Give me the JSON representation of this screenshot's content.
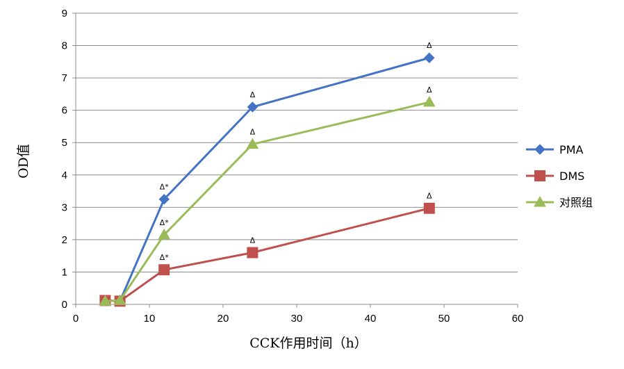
{
  "chart_data": {
    "type": "line",
    "title": "",
    "xlabel": "CCK作用时间（h）",
    "ylabel": "OD值",
    "xlim": [
      0,
      60
    ],
    "ylim": [
      0,
      9
    ],
    "xticks": [
      0,
      10,
      20,
      30,
      40,
      50,
      60
    ],
    "yticks": [
      0,
      1,
      2,
      3,
      4,
      5,
      6,
      7,
      8,
      9
    ],
    "grid": "horizontal",
    "legend_position": "right",
    "x": [
      4,
      6,
      12,
      24,
      48
    ],
    "series": [
      {
        "name": "PMA",
        "color": "#4472C4",
        "marker": "diamond",
        "values": [
          0.12,
          0.1,
          3.25,
          6.1,
          7.62
        ],
        "annotations": [
          "",
          "",
          "Δ*",
          "Δ",
          "Δ"
        ]
      },
      {
        "name": "DMS",
        "color": "#C0504D",
        "marker": "square",
        "values": [
          0.12,
          0.1,
          1.07,
          1.6,
          2.97
        ],
        "annotations": [
          "",
          "",
          "Δ*",
          "Δ",
          "Δ"
        ]
      },
      {
        "name": "对照组",
        "color": "#9BBB59",
        "marker": "triangle",
        "values": [
          0.1,
          0.12,
          2.15,
          4.95,
          6.25
        ],
        "annotations": [
          "",
          "",
          "Δ*",
          "Δ",
          "Δ"
        ]
      }
    ]
  }
}
